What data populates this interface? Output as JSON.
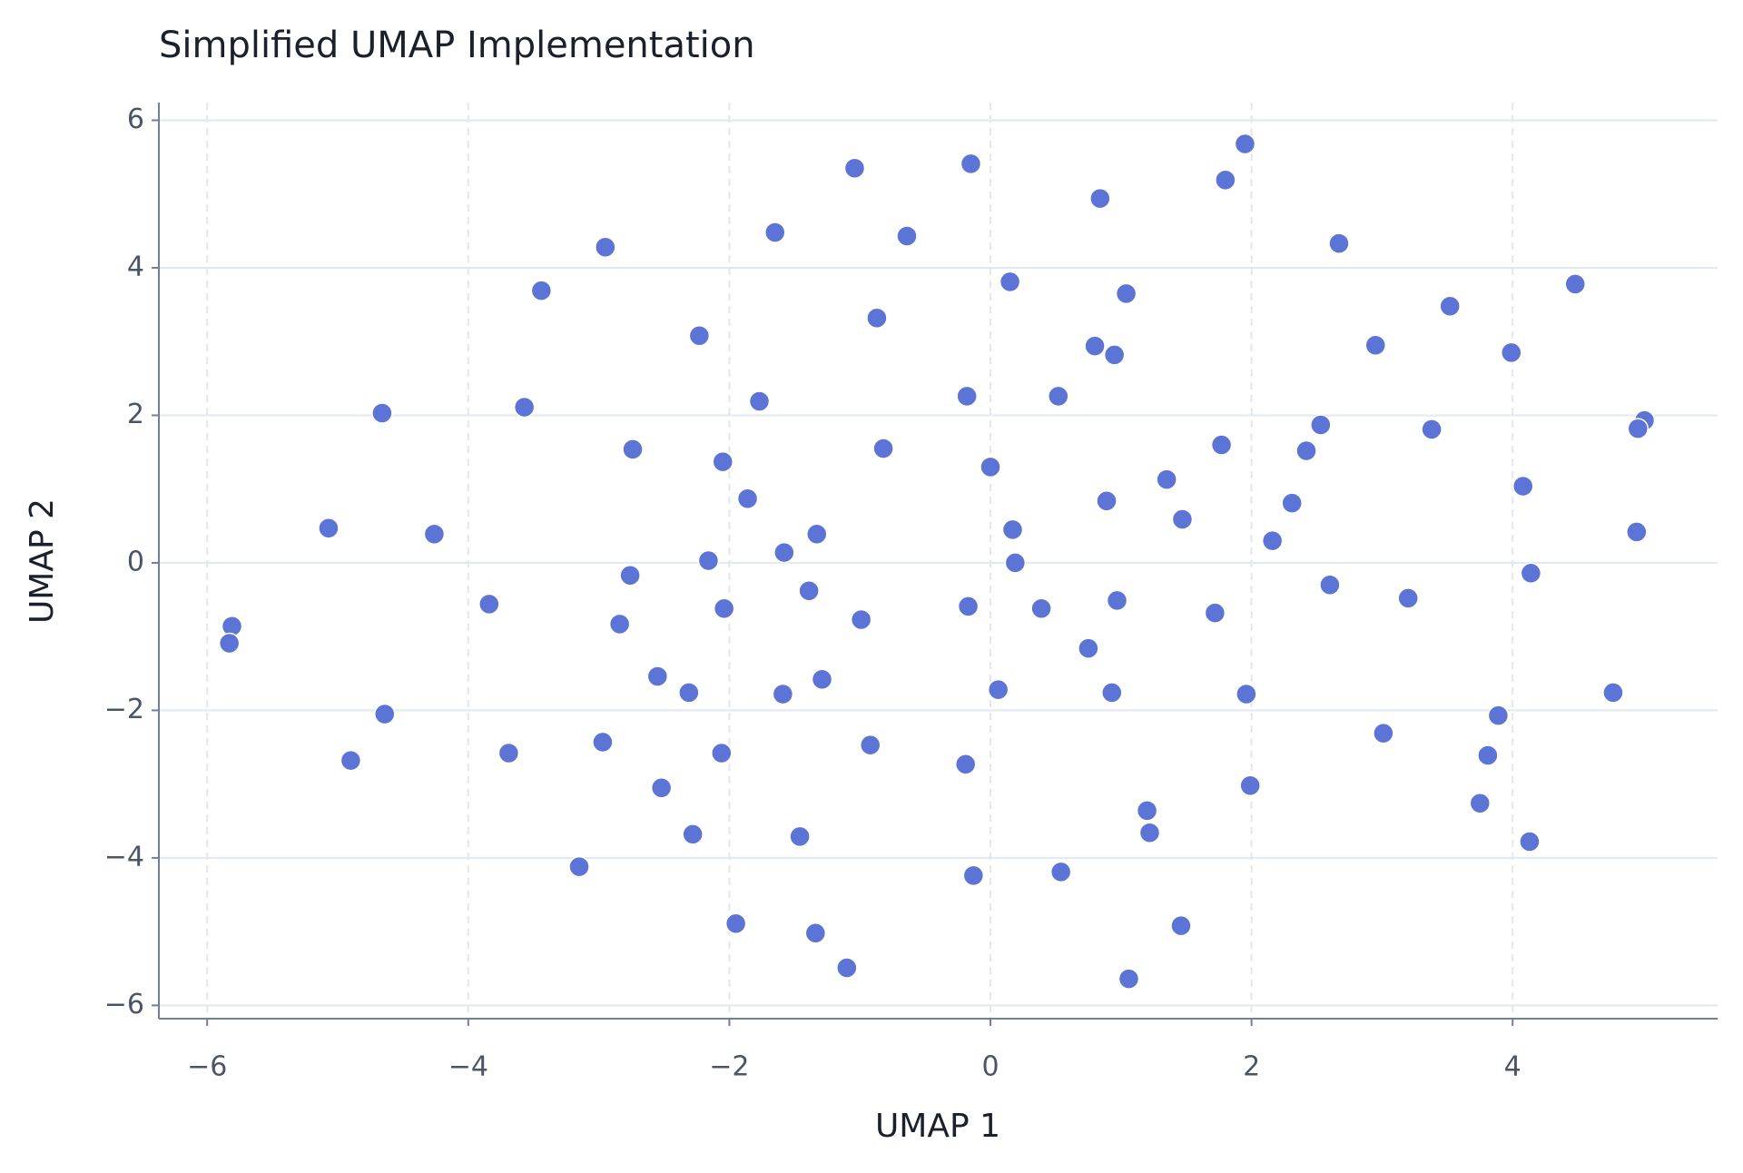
{
  "chart_data": {
    "type": "scatter",
    "title": "Simplified UMAP Implementation",
    "x_label": "UMAP 1",
    "y_label": "UMAP 2",
    "color": "#5b74d6",
    "grid": true,
    "xlim": [
      -6.37,
      5.57
    ],
    "ylim": [
      -6.18,
      6.24
    ],
    "xticks": [
      {
        "value": -6,
        "label": "−6"
      },
      {
        "value": -4,
        "label": "−4"
      },
      {
        "value": -2,
        "label": "−2"
      },
      0,
      2,
      4
    ],
    "yticks": [
      {
        "value": -6,
        "label": "−6"
      },
      {
        "value": -4,
        "label": "−4"
      },
      {
        "value": -2,
        "label": "−2"
      },
      0,
      2,
      4,
      6
    ],
    "x": [
      1.95,
      -0.15,
      -1.04,
      1.8,
      0.84,
      -1.65,
      -0.64,
      -2.95,
      2.67,
      0.15,
      4.48,
      -3.44,
      1.04,
      3.52,
      -0.87,
      -2.23,
      2.95,
      0.8,
      0.95,
      3.99,
      -0.18,
      0.52,
      -1.77,
      -4.66,
      -3.57,
      5.01,
      4.96,
      2.53,
      3.38,
      -2.74,
      -0.82,
      1.77,
      2.42,
      -2.05,
      0.0,
      1.35,
      4.08,
      -1.86,
      0.89,
      2.31,
      1.47,
      -5.07,
      0.17,
      -4.26,
      -1.33,
      4.95,
      2.16,
      -1.58,
      -2.16,
      0.19,
      -2.76,
      4.14,
      -1.39,
      2.6,
      3.2,
      0.97,
      -3.84,
      -0.17,
      -2.04,
      0.39,
      1.72,
      -0.99,
      -2.84,
      -5.81,
      -5.83,
      0.75,
      -2.55,
      -1.29,
      -2.31,
      -1.59,
      0.06,
      0.93,
      1.96,
      4.77,
      -4.64,
      3.89,
      3.01,
      -2.97,
      -0.92,
      -3.69,
      -2.06,
      3.81,
      -4.9,
      -0.19,
      1.99,
      -2.52,
      3.75,
      1.2,
      -2.28,
      1.22,
      -1.46,
      4.13,
      -3.15,
      0.54,
      -0.13,
      -1.95,
      1.46,
      -1.34,
      -1.1,
      1.06
    ],
    "y": [
      5.68,
      5.41,
      5.35,
      5.19,
      4.94,
      4.48,
      4.43,
      4.28,
      4.33,
      3.81,
      3.78,
      3.69,
      3.65,
      3.48,
      3.32,
      3.08,
      2.95,
      2.94,
      2.82,
      2.85,
      2.26,
      2.26,
      2.19,
      2.03,
      2.11,
      1.93,
      1.82,
      1.87,
      1.81,
      1.54,
      1.55,
      1.6,
      1.52,
      1.37,
      1.3,
      1.13,
      1.04,
      0.87,
      0.84,
      0.81,
      0.59,
      0.47,
      0.45,
      0.39,
      0.39,
      0.42,
      0.3,
      0.14,
      0.03,
      0.0,
      -0.17,
      -0.14,
      -0.38,
      -0.3,
      -0.48,
      -0.51,
      -0.56,
      -0.59,
      -0.62,
      -0.62,
      -0.68,
      -0.77,
      -0.83,
      -0.86,
      -1.09,
      -1.16,
      -1.54,
      -1.58,
      -1.76,
      -1.78,
      -1.72,
      -1.76,
      -1.78,
      -1.76,
      -2.05,
      -2.07,
      -2.31,
      -2.43,
      -2.47,
      -2.58,
      -2.58,
      -2.61,
      -2.68,
      -2.73,
      -3.02,
      -3.05,
      -3.26,
      -3.36,
      -3.68,
      -3.66,
      -3.71,
      -3.78,
      -4.12,
      -4.19,
      -4.24,
      -4.89,
      -4.92,
      -5.02,
      -5.49,
      -5.64
    ]
  }
}
